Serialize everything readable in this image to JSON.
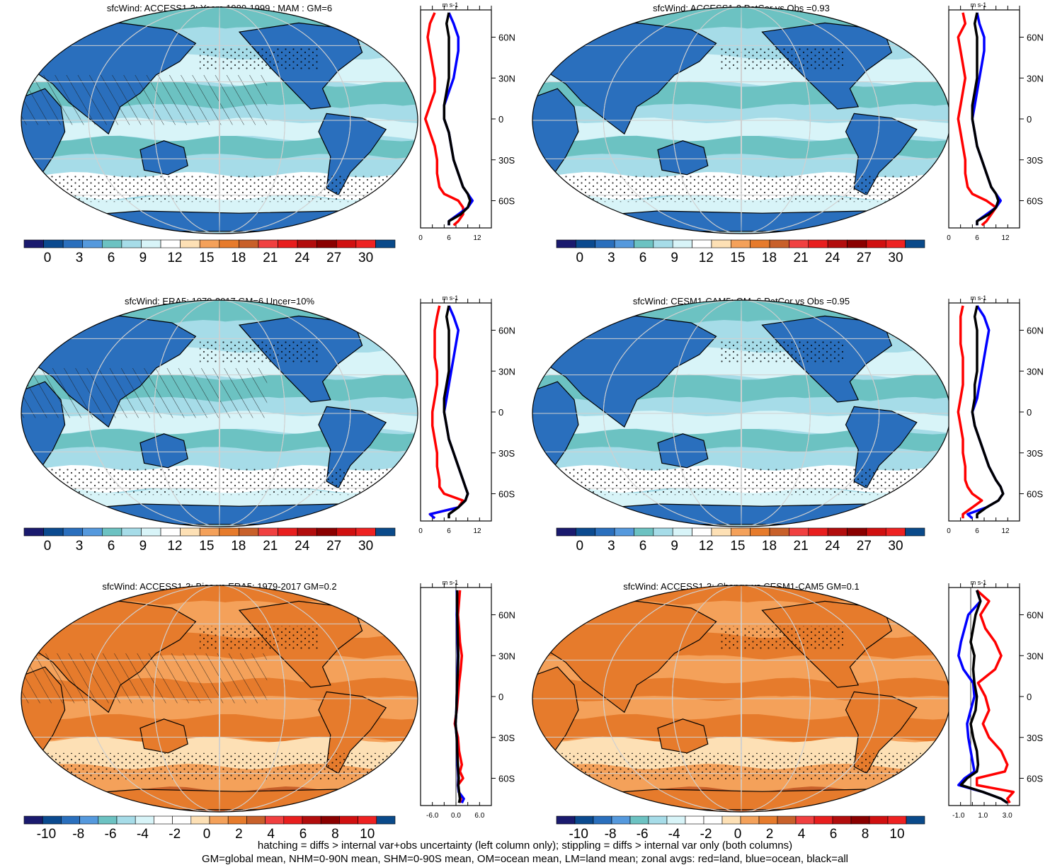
{
  "figure": {
    "footnotes": [
      "hatching = diffs > internal var+obs uncertainty (left column only); stippling = diffs > internal var only (both columns)",
      "GM=global mean, NHM=0-90N mean, SHM=0-90S mean, OM=ocean mean, LM=land mean; zonal avgs: red=land, blue=ocean, black=all"
    ]
  },
  "colors": {
    "land": "#ff0000",
    "ocean": "#0000ff",
    "all": "#000000",
    "sequential_scale": [
      "#1a1a6e",
      "#0b4a8f",
      "#2a6fbd",
      "#5599dd",
      "#6cc2c2",
      "#a6dce8",
      "#d8f4f8",
      "#ffffff",
      "#fde0b5",
      "#f4a15a",
      "#e67b2c",
      "#c8602a",
      "#f04040",
      "#e81e1e",
      "#b20d0d",
      "#8a0000",
      "#d01010",
      "#ee2222",
      "#0a4a8a"
    ],
    "diverging_scale": [
      "#1a1a6e",
      "#0b4a8f",
      "#2a6fbd",
      "#5599dd",
      "#6cc2c2",
      "#a6dce8",
      "#d8f4f8",
      "#ffffff",
      "#ffffff",
      "#fde0b5",
      "#f4a15a",
      "#e67b2c",
      "#c8602a",
      "#f04040",
      "#e81e1e",
      "#b20d0d",
      "#8a0000",
      "#d01010",
      "#ee2222",
      "#0a4a8a"
    ]
  },
  "chart_data": [
    {
      "type": "heatmap",
      "title": "sfcWind: ACCESS1-3: Years 1980-1999 : MAM : GM=6",
      "colorbar_ticks": [
        "0",
        "3",
        "6",
        "9",
        "12",
        "15",
        "18",
        "21",
        "24",
        "27",
        "30"
      ],
      "field": "absolute",
      "zonal_avg": {
        "unit": "m s-1",
        "xlim": [
          0,
          15
        ],
        "xticks": [
          "0",
          "6",
          "12"
        ],
        "yticks": [
          "60N",
          "30N",
          "0",
          "30S",
          "60S"
        ],
        "lat": [
          78,
          70,
          60,
          50,
          40,
          30,
          20,
          10,
          0,
          -10,
          -20,
          -30,
          -40,
          -50,
          -55,
          -60,
          -65,
          -70,
          -75,
          -78
        ],
        "land": [
          3,
          2,
          1.5,
          2,
          2.5,
          3,
          3,
          2,
          1,
          2,
          3,
          3.5,
          3.5,
          4,
          5,
          8,
          9,
          9,
          8,
          7
        ],
        "ocean": [
          6,
          7,
          8,
          8,
          7.5,
          7,
          6,
          5,
          5,
          6,
          6.5,
          7,
          8,
          9,
          10,
          11,
          10,
          8,
          6,
          6
        ],
        "all": [
          6,
          5.5,
          6,
          6,
          6,
          6,
          5.5,
          5,
          5,
          6,
          6.5,
          7,
          8,
          9,
          10,
          10.5,
          10,
          8.5,
          6,
          6
        ]
      }
    },
    {
      "type": "heatmap",
      "title": "sfcWind: ACCESS1-3 PatCor vs Obs =0.93",
      "colorbar_ticks": [
        "0",
        "3",
        "6",
        "9",
        "12",
        "15",
        "18",
        "21",
        "24",
        "27",
        "30"
      ],
      "field": "absolute",
      "zonal_avg": {
        "unit": "m s-1",
        "xlim": [
          0,
          15
        ],
        "xticks": [
          "0",
          "6",
          "12"
        ],
        "yticks": [
          "60N",
          "30N",
          "0",
          "30S",
          "60S"
        ],
        "lat": [
          78,
          70,
          60,
          50,
          40,
          30,
          20,
          10,
          0,
          -10,
          -20,
          -30,
          -40,
          -50,
          -55,
          -60,
          -65,
          -70,
          -75,
          -78
        ],
        "land": [
          3,
          3.5,
          2,
          2.5,
          3,
          3.5,
          3,
          2.5,
          2,
          2.5,
          3,
          3.5,
          3.5,
          4,
          5,
          8,
          10,
          9,
          8,
          7
        ],
        "ocean": [
          6,
          6.5,
          7.5,
          7.5,
          7,
          6.5,
          6,
          5.5,
          5,
          5.5,
          6,
          7,
          8,
          9,
          10,
          11,
          10,
          8,
          6,
          6
        ],
        "all": [
          6,
          5.5,
          6,
          6,
          6,
          6,
          5.5,
          5,
          5,
          5.5,
          6,
          7,
          8,
          9,
          10,
          10.5,
          10,
          8.5,
          6,
          6
        ]
      }
    },
    {
      "type": "heatmap",
      "title": "sfcWind: ERA5: 1979-2017 GM=6 Uncer=10%",
      "colorbar_ticks": [
        "0",
        "3",
        "6",
        "9",
        "12",
        "15",
        "18",
        "21",
        "24",
        "27",
        "30"
      ],
      "field": "absolute",
      "zonal_avg": {
        "unit": "m s-1",
        "xlim": [
          0,
          15
        ],
        "xticks": [
          "0",
          "6",
          "12"
        ],
        "yticks": [
          "60N",
          "30N",
          "0",
          "30S",
          "60S"
        ],
        "lat": [
          78,
          70,
          60,
          50,
          40,
          30,
          20,
          10,
          0,
          -10,
          -20,
          -30,
          -40,
          -50,
          -55,
          -60,
          -65,
          -70,
          -75,
          -78
        ],
        "land": [
          4,
          3.5,
          3,
          3,
          3,
          3.5,
          3.5,
          3,
          2.5,
          2.5,
          3,
          3.5,
          3.5,
          4,
          4,
          5,
          9,
          8,
          2,
          3
        ],
        "ocean": [
          6,
          7,
          8,
          7.5,
          7,
          6.5,
          6,
          5.5,
          5,
          5.5,
          6,
          7,
          8,
          9,
          9.5,
          10,
          9.5,
          8,
          2,
          3
        ],
        "all": [
          6,
          5.5,
          6,
          6,
          6,
          6,
          5.5,
          5,
          5,
          5.5,
          6,
          7,
          8,
          9,
          9.5,
          10,
          9.5,
          8,
          6,
          6
        ]
      }
    },
    {
      "type": "heatmap",
      "title": "sfcWind: CESM1-CAM5: GM=6 PatCor vs Obs =0.95",
      "colorbar_ticks": [
        "0",
        "3",
        "6",
        "9",
        "12",
        "15",
        "18",
        "21",
        "24",
        "27",
        "30"
      ],
      "field": "absolute",
      "zonal_avg": {
        "unit": "m s-1",
        "xlim": [
          0,
          15
        ],
        "xticks": [
          "0",
          "6",
          "12"
        ],
        "yticks": [
          "60N",
          "30N",
          "0",
          "30S",
          "60S"
        ],
        "lat": [
          78,
          70,
          60,
          50,
          40,
          30,
          20,
          10,
          0,
          -10,
          -20,
          -30,
          -40,
          -50,
          -55,
          -60,
          -65,
          -70,
          -75,
          -78
        ],
        "land": [
          3,
          2.5,
          2.5,
          2.5,
          3,
          3,
          3,
          2.5,
          2,
          2.5,
          3,
          3,
          3.5,
          3.5,
          4,
          5,
          7,
          5,
          3,
          3
        ],
        "ocean": [
          6,
          7.5,
          8.5,
          8,
          7.5,
          7,
          6.5,
          6,
          5,
          5.5,
          6.5,
          7.5,
          8.5,
          10,
          11,
          11.5,
          10.5,
          8,
          4,
          5
        ],
        "all": [
          6,
          5.5,
          6,
          6,
          6,
          6,
          5.5,
          5.5,
          5,
          5.5,
          6.5,
          7.5,
          8.5,
          10,
          11,
          11.5,
          10.5,
          8,
          6,
          6
        ]
      }
    },
    {
      "type": "heatmap",
      "title": "sfcWind: ACCESS1-3: Bias vs ERA5: 1979-2017 GM=0.2",
      "colorbar_ticks": [
        "-10",
        "-8",
        "-6",
        "-4",
        "-2",
        "0",
        "2",
        "4",
        "6",
        "8",
        "10"
      ],
      "field": "difference",
      "zonal_avg": {
        "unit": "m s-1",
        "xlim": [
          -9,
          9
        ],
        "xticks": [
          "-6.0",
          "0.0",
          "6.0"
        ],
        "yticks": [
          "60N",
          "30N",
          "0",
          "30S",
          "60S"
        ],
        "lat": [
          78,
          70,
          60,
          50,
          40,
          30,
          20,
          10,
          0,
          -10,
          -20,
          -30,
          -40,
          -50,
          -55,
          -60,
          -65,
          -70,
          -75,
          -78
        ],
        "land": [
          1,
          0.8,
          0.5,
          0.8,
          1,
          1.5,
          1.2,
          0.8,
          0.5,
          0.2,
          -0.3,
          0.5,
          0.8,
          1.5,
          1,
          1.8,
          0.5,
          0.8,
          1.2,
          1
        ],
        "ocean": [
          0.2,
          0.3,
          0.2,
          0.3,
          0.4,
          0.5,
          0.4,
          0.3,
          0.2,
          0.1,
          -0.1,
          0.2,
          0.3,
          0.4,
          0.5,
          0.6,
          0.5,
          0.7,
          2,
          1.5
        ],
        "all": [
          0.3,
          0.3,
          0.3,
          0.4,
          0.5,
          0.6,
          0.5,
          0.3,
          0.2,
          0.1,
          -0.1,
          0.2,
          0.3,
          0.5,
          0.6,
          0.7,
          0.6,
          0.8,
          1,
          0.8
        ]
      }
    },
    {
      "type": "heatmap",
      "title": "sfcWind: ACCESS1-3: Change vs CESM1-CAM5 GM=0.1",
      "colorbar_ticks": [
        "-10",
        "-8",
        "-6",
        "-4",
        "-2",
        "0",
        "2",
        "4",
        "6",
        "8",
        "10"
      ],
      "field": "difference",
      "zonal_avg": {
        "unit": "m s-1",
        "xlim": [
          -1.8,
          4
        ],
        "xticks": [
          "-1.0",
          "1.0",
          "3.0"
        ],
        "yticks": [
          "60N",
          "30N",
          "0",
          "30S",
          "60S"
        ],
        "lat": [
          78,
          70,
          60,
          50,
          40,
          30,
          20,
          10,
          0,
          -10,
          -20,
          -30,
          -40,
          -50,
          -55,
          -60,
          -65,
          -70,
          -75,
          -78
        ],
        "land": [
          0.5,
          1.5,
          0.8,
          1.2,
          2,
          2.5,
          2,
          0.6,
          1.2,
          1.5,
          1,
          1.5,
          2.5,
          3,
          2.8,
          0.5,
          0.5,
          3.5,
          3,
          3.2
        ],
        "ocean": [
          0.5,
          0.8,
          -0.2,
          -0.5,
          -0.8,
          -1,
          -0.6,
          0.2,
          0.3,
          0,
          -0.3,
          -0.2,
          0,
          0.2,
          0.3,
          -0.5,
          -1,
          1,
          2.5,
          3
        ],
        "all": [
          0.5,
          0.8,
          0.4,
          0.2,
          0,
          0.3,
          0.2,
          0.3,
          0.5,
          0.4,
          0,
          0.2,
          0.5,
          0.6,
          0.5,
          -0.3,
          -0.8,
          1,
          2.5,
          3
        ]
      }
    }
  ]
}
